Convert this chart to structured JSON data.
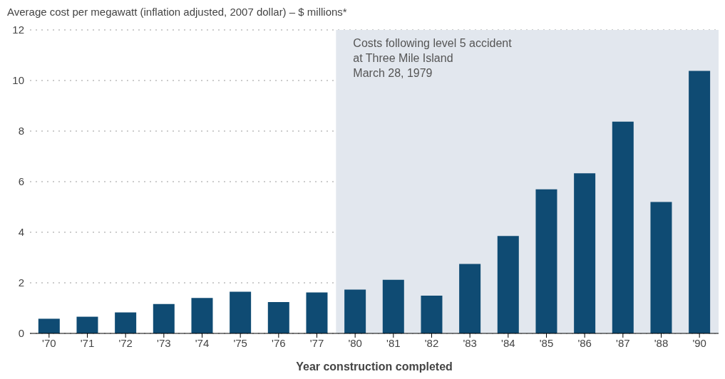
{
  "chart_data": {
    "type": "bar",
    "title": "Average cost per megawatt (inflation adjusted, 2007 dollar) – $ millions*",
    "xlabel": "Year construction completed",
    "categories": [
      "'70",
      "'71",
      "'72",
      "'73",
      "'74",
      "'75",
      "'76",
      "'77",
      "'80",
      "'81",
      "'82",
      "'83",
      "'84",
      "'85",
      "'86",
      "'87",
      "'88",
      "'90"
    ],
    "values": [
      0.58,
      0.66,
      0.83,
      1.16,
      1.4,
      1.65,
      1.24,
      1.62,
      1.73,
      2.12,
      1.49,
      2.75,
      3.85,
      5.7,
      6.33,
      8.37,
      5.2,
      10.38
    ],
    "color": "#0f4b73",
    "ylim": [
      0,
      12
    ],
    "yticks": [
      0,
      2,
      4,
      6,
      8,
      10,
      12
    ],
    "grid": "y",
    "legend": false,
    "bands": [
      {
        "axis": "x",
        "from": "'80",
        "to": "'90",
        "label": "Costs following level 5 accident\nat Three Mile Island\nMarch 28, 1979",
        "color": "#e2e7ee"
      }
    ]
  }
}
